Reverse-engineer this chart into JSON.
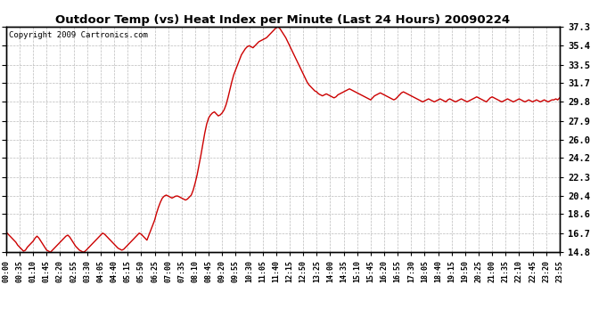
{
  "title": "Outdoor Temp (vs) Heat Index per Minute (Last 24 Hours) 20090224",
  "copyright": "Copyright 2009 Cartronics.com",
  "line_color": "#cc0000",
  "background_color": "#ffffff",
  "grid_color": "#bbbbbb",
  "yticks": [
    14.8,
    16.7,
    18.6,
    20.4,
    22.3,
    24.2,
    26.0,
    27.9,
    29.8,
    31.7,
    33.5,
    35.4,
    37.3
  ],
  "ymin": 14.8,
  "ymax": 37.3,
  "xtick_labels": [
    "00:00",
    "00:35",
    "01:10",
    "01:45",
    "02:20",
    "02:55",
    "03:30",
    "04:05",
    "04:40",
    "05:15",
    "05:50",
    "06:25",
    "07:00",
    "07:35",
    "08:10",
    "08:45",
    "09:20",
    "09:55",
    "10:30",
    "11:05",
    "11:40",
    "12:15",
    "12:50",
    "13:25",
    "14:00",
    "14:35",
    "15:10",
    "15:45",
    "16:20",
    "16:55",
    "17:30",
    "18:05",
    "18:40",
    "19:15",
    "19:50",
    "20:25",
    "21:00",
    "21:35",
    "22:10",
    "22:45",
    "23:20",
    "23:55"
  ],
  "x_values": [
    0,
    35,
    70,
    105,
    140,
    175,
    210,
    245,
    280,
    315,
    350,
    385,
    420,
    455,
    490,
    525,
    560,
    595,
    630,
    665,
    700,
    735,
    770,
    805,
    840,
    875,
    910,
    945,
    980,
    1015,
    1050,
    1085,
    1120,
    1155,
    1190,
    1225,
    1260,
    1295,
    1330,
    1365,
    1400,
    1435
  ],
  "curve": [
    [
      0,
      16.8
    ],
    [
      5,
      16.6
    ],
    [
      10,
      16.4
    ],
    [
      15,
      16.2
    ],
    [
      20,
      16.0
    ],
    [
      25,
      15.8
    ],
    [
      30,
      15.5
    ],
    [
      35,
      15.3
    ],
    [
      40,
      15.1
    ],
    [
      45,
      14.9
    ],
    [
      50,
      15.0
    ],
    [
      55,
      15.3
    ],
    [
      60,
      15.5
    ],
    [
      65,
      15.7
    ],
    [
      70,
      15.9
    ],
    [
      75,
      16.2
    ],
    [
      80,
      16.4
    ],
    [
      85,
      16.2
    ],
    [
      90,
      15.9
    ],
    [
      95,
      15.6
    ],
    [
      100,
      15.3
    ],
    [
      105,
      15.0
    ],
    [
      110,
      14.9
    ],
    [
      115,
      14.8
    ],
    [
      120,
      15.0
    ],
    [
      125,
      15.2
    ],
    [
      130,
      15.4
    ],
    [
      135,
      15.6
    ],
    [
      140,
      15.8
    ],
    [
      145,
      16.0
    ],
    [
      150,
      16.2
    ],
    [
      155,
      16.4
    ],
    [
      160,
      16.5
    ],
    [
      165,
      16.3
    ],
    [
      170,
      16.0
    ],
    [
      175,
      15.7
    ],
    [
      180,
      15.4
    ],
    [
      185,
      15.2
    ],
    [
      190,
      15.0
    ],
    [
      195,
      14.9
    ],
    [
      200,
      14.8
    ],
    [
      205,
      14.9
    ],
    [
      210,
      15.1
    ],
    [
      215,
      15.3
    ],
    [
      220,
      15.5
    ],
    [
      225,
      15.7
    ],
    [
      230,
      15.9
    ],
    [
      235,
      16.1
    ],
    [
      240,
      16.3
    ],
    [
      245,
      16.5
    ],
    [
      250,
      16.7
    ],
    [
      255,
      16.6
    ],
    [
      260,
      16.4
    ],
    [
      265,
      16.2
    ],
    [
      270,
      16.0
    ],
    [
      275,
      15.8
    ],
    [
      280,
      15.6
    ],
    [
      285,
      15.4
    ],
    [
      290,
      15.2
    ],
    [
      295,
      15.1
    ],
    [
      300,
      15.0
    ],
    [
      305,
      15.1
    ],
    [
      310,
      15.3
    ],
    [
      315,
      15.5
    ],
    [
      320,
      15.7
    ],
    [
      325,
      15.9
    ],
    [
      330,
      16.1
    ],
    [
      335,
      16.3
    ],
    [
      340,
      16.5
    ],
    [
      345,
      16.7
    ],
    [
      350,
      16.6
    ],
    [
      355,
      16.4
    ],
    [
      360,
      16.2
    ],
    [
      365,
      16.0
    ],
    [
      370,
      16.5
    ],
    [
      375,
      17.0
    ],
    [
      380,
      17.5
    ],
    [
      385,
      18.0
    ],
    [
      390,
      18.7
    ],
    [
      395,
      19.3
    ],
    [
      400,
      19.8
    ],
    [
      405,
      20.2
    ],
    [
      410,
      20.4
    ],
    [
      415,
      20.5
    ],
    [
      420,
      20.4
    ],
    [
      425,
      20.3
    ],
    [
      430,
      20.2
    ],
    [
      435,
      20.3
    ],
    [
      440,
      20.4
    ],
    [
      445,
      20.4
    ],
    [
      450,
      20.3
    ],
    [
      455,
      20.2
    ],
    [
      460,
      20.1
    ],
    [
      465,
      20.0
    ],
    [
      470,
      20.1
    ],
    [
      475,
      20.3
    ],
    [
      480,
      20.5
    ],
    [
      485,
      21.0
    ],
    [
      490,
      21.7
    ],
    [
      495,
      22.5
    ],
    [
      500,
      23.5
    ],
    [
      505,
      24.5
    ],
    [
      510,
      25.6
    ],
    [
      515,
      26.7
    ],
    [
      520,
      27.6
    ],
    [
      525,
      28.2
    ],
    [
      530,
      28.5
    ],
    [
      535,
      28.7
    ],
    [
      540,
      28.8
    ],
    [
      545,
      28.6
    ],
    [
      550,
      28.4
    ],
    [
      555,
      28.5
    ],
    [
      560,
      28.7
    ],
    [
      565,
      29.0
    ],
    [
      570,
      29.5
    ],
    [
      575,
      30.2
    ],
    [
      580,
      31.0
    ],
    [
      585,
      31.8
    ],
    [
      590,
      32.5
    ],
    [
      595,
      33.0
    ],
    [
      600,
      33.5
    ],
    [
      605,
      34.0
    ],
    [
      610,
      34.5
    ],
    [
      615,
      34.8
    ],
    [
      620,
      35.1
    ],
    [
      625,
      35.3
    ],
    [
      630,
      35.4
    ],
    [
      635,
      35.3
    ],
    [
      640,
      35.2
    ],
    [
      645,
      35.4
    ],
    [
      650,
      35.6
    ],
    [
      655,
      35.8
    ],
    [
      660,
      35.9
    ],
    [
      665,
      36.0
    ],
    [
      670,
      36.1
    ],
    [
      675,
      36.2
    ],
    [
      680,
      36.4
    ],
    [
      685,
      36.6
    ],
    [
      690,
      36.8
    ],
    [
      695,
      37.0
    ],
    [
      700,
      37.2
    ],
    [
      705,
      37.3
    ],
    [
      710,
      37.1
    ],
    [
      715,
      36.8
    ],
    [
      720,
      36.5
    ],
    [
      725,
      36.2
    ],
    [
      730,
      35.8
    ],
    [
      735,
      35.4
    ],
    [
      740,
      35.0
    ],
    [
      745,
      34.6
    ],
    [
      750,
      34.2
    ],
    [
      755,
      33.8
    ],
    [
      760,
      33.4
    ],
    [
      765,
      33.0
    ],
    [
      770,
      32.6
    ],
    [
      775,
      32.2
    ],
    [
      780,
      31.8
    ],
    [
      785,
      31.5
    ],
    [
      790,
      31.3
    ],
    [
      795,
      31.1
    ],
    [
      800,
      30.9
    ],
    [
      805,
      30.8
    ],
    [
      810,
      30.6
    ],
    [
      815,
      30.5
    ],
    [
      820,
      30.4
    ],
    [
      825,
      30.5
    ],
    [
      830,
      30.6
    ],
    [
      835,
      30.5
    ],
    [
      840,
      30.4
    ],
    [
      845,
      30.3
    ],
    [
      850,
      30.2
    ],
    [
      855,
      30.3
    ],
    [
      860,
      30.5
    ],
    [
      865,
      30.6
    ],
    [
      870,
      30.7
    ],
    [
      875,
      30.8
    ],
    [
      880,
      30.9
    ],
    [
      885,
      31.0
    ],
    [
      890,
      31.1
    ],
    [
      895,
      31.0
    ],
    [
      900,
      30.9
    ],
    [
      905,
      30.8
    ],
    [
      910,
      30.7
    ],
    [
      915,
      30.6
    ],
    [
      920,
      30.5
    ],
    [
      925,
      30.4
    ],
    [
      930,
      30.3
    ],
    [
      935,
      30.2
    ],
    [
      940,
      30.1
    ],
    [
      945,
      30.0
    ],
    [
      950,
      30.2
    ],
    [
      955,
      30.4
    ],
    [
      960,
      30.5
    ],
    [
      965,
      30.6
    ],
    [
      970,
      30.7
    ],
    [
      975,
      30.6
    ],
    [
      980,
      30.5
    ],
    [
      985,
      30.4
    ],
    [
      990,
      30.3
    ],
    [
      995,
      30.2
    ],
    [
      1000,
      30.1
    ],
    [
      1005,
      30.0
    ],
    [
      1010,
      30.1
    ],
    [
      1015,
      30.3
    ],
    [
      1020,
      30.5
    ],
    [
      1025,
      30.7
    ],
    [
      1030,
      30.8
    ],
    [
      1035,
      30.7
    ],
    [
      1040,
      30.6
    ],
    [
      1045,
      30.5
    ],
    [
      1050,
      30.4
    ],
    [
      1055,
      30.3
    ],
    [
      1060,
      30.2
    ],
    [
      1065,
      30.1
    ],
    [
      1070,
      30.0
    ],
    [
      1075,
      29.9
    ],
    [
      1080,
      29.8
    ],
    [
      1085,
      29.9
    ],
    [
      1090,
      30.0
    ],
    [
      1095,
      30.1
    ],
    [
      1100,
      30.0
    ],
    [
      1105,
      29.9
    ],
    [
      1110,
      29.8
    ],
    [
      1115,
      29.9
    ],
    [
      1120,
      30.0
    ],
    [
      1125,
      30.1
    ],
    [
      1130,
      30.0
    ],
    [
      1135,
      29.9
    ],
    [
      1140,
      29.8
    ],
    [
      1145,
      30.0
    ],
    [
      1150,
      30.1
    ],
    [
      1155,
      30.0
    ],
    [
      1160,
      29.9
    ],
    [
      1165,
      29.8
    ],
    [
      1170,
      29.9
    ],
    [
      1175,
      30.0
    ],
    [
      1180,
      30.1
    ],
    [
      1185,
      30.0
    ],
    [
      1190,
      29.9
    ],
    [
      1195,
      29.8
    ],
    [
      1200,
      29.9
    ],
    [
      1205,
      30.0
    ],
    [
      1210,
      30.1
    ],
    [
      1215,
      30.2
    ],
    [
      1220,
      30.3
    ],
    [
      1225,
      30.2
    ],
    [
      1230,
      30.1
    ],
    [
      1235,
      30.0
    ],
    [
      1240,
      29.9
    ],
    [
      1245,
      29.8
    ],
    [
      1250,
      30.0
    ],
    [
      1255,
      30.2
    ],
    [
      1260,
      30.3
    ],
    [
      1265,
      30.2
    ],
    [
      1270,
      30.1
    ],
    [
      1275,
      30.0
    ],
    [
      1280,
      29.9
    ],
    [
      1285,
      29.8
    ],
    [
      1290,
      29.9
    ],
    [
      1295,
      30.0
    ],
    [
      1300,
      30.1
    ],
    [
      1305,
      30.0
    ],
    [
      1310,
      29.9
    ],
    [
      1315,
      29.8
    ],
    [
      1320,
      29.9
    ],
    [
      1325,
      30.0
    ],
    [
      1330,
      30.1
    ],
    [
      1335,
      30.0
    ],
    [
      1340,
      29.9
    ],
    [
      1345,
      29.8
    ],
    [
      1350,
      29.9
    ],
    [
      1355,
      30.0
    ],
    [
      1360,
      29.9
    ],
    [
      1365,
      29.8
    ],
    [
      1370,
      29.9
    ],
    [
      1375,
      30.0
    ],
    [
      1380,
      29.9
    ],
    [
      1385,
      29.8
    ],
    [
      1390,
      29.9
    ],
    [
      1395,
      30.0
    ],
    [
      1400,
      29.9
    ],
    [
      1405,
      29.8
    ],
    [
      1410,
      29.9
    ],
    [
      1415,
      30.0
    ],
    [
      1420,
      30.0
    ],
    [
      1425,
      30.1
    ],
    [
      1430,
      30.0
    ],
    [
      1435,
      30.2
    ]
  ]
}
